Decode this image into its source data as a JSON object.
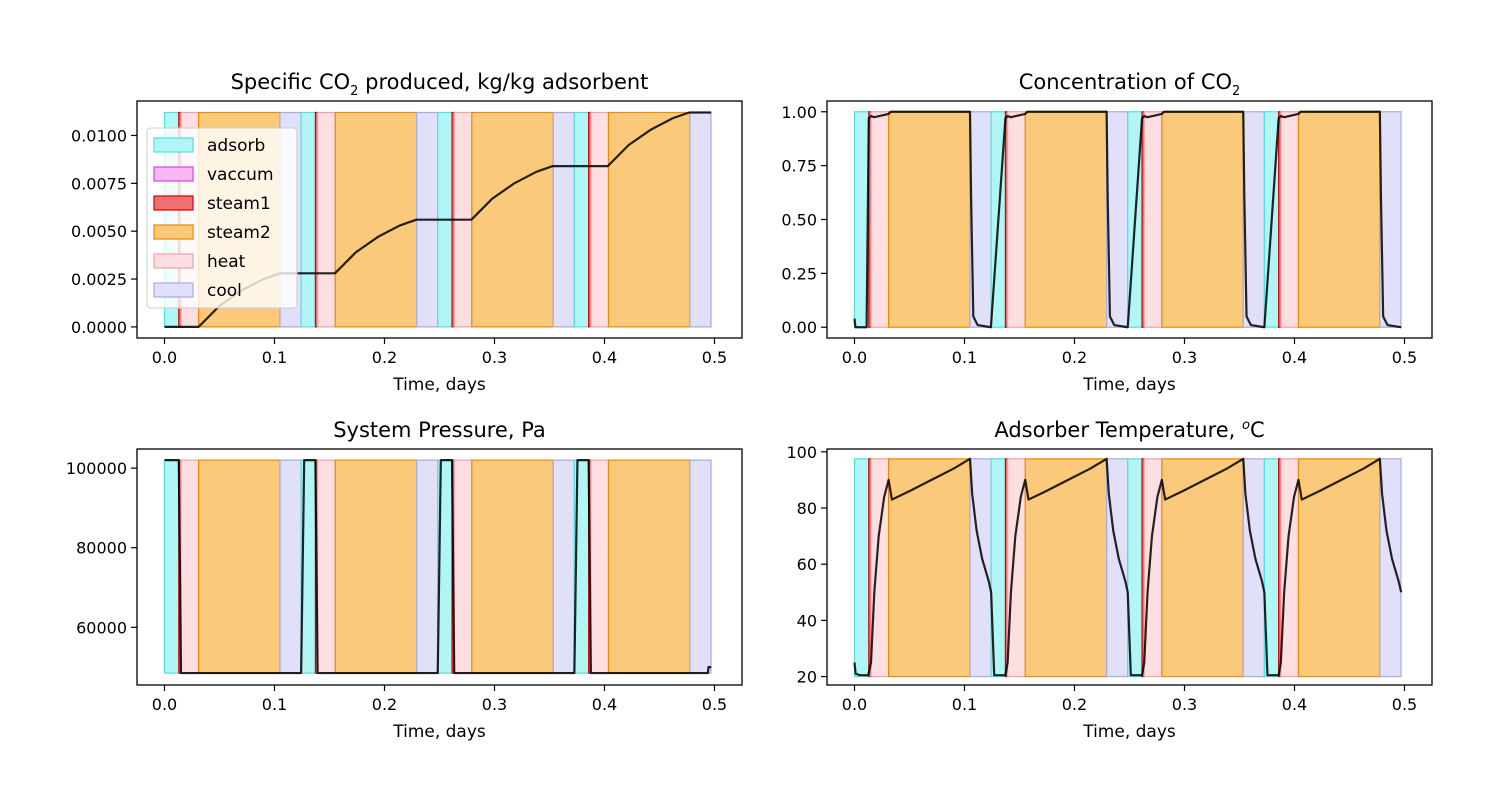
{
  "phase_colors": {
    "adsorb": {
      "fill": "#b2f5f5",
      "edge": "#4fe0e0"
    },
    "vaccum": {
      "fill": "#f5b8f2",
      "edge": "#e040e0"
    },
    "steam1": {
      "fill": "#ef7070",
      "edge": "#d80000"
    },
    "steam2": {
      "fill": "#fbc97a",
      "edge": "#f08800"
    },
    "heat": {
      "fill": "#fddfe2",
      "edge": "#f0a0a8"
    },
    "cool": {
      "fill": "#e0e0f9",
      "edge": "#a8a8ea"
    }
  },
  "cycle": {
    "start_times": [
      0.0,
      0.1242,
      0.2484,
      0.3726
    ],
    "phases": [
      {
        "name": "adsorb",
        "start": 0.0,
        "end": 0.013
      },
      {
        "name": "steam1",
        "start": 0.013,
        "end": 0.015
      },
      {
        "name": "heat",
        "start": 0.015,
        "end": 0.031
      },
      {
        "name": "steam2",
        "start": 0.031,
        "end": 0.105
      },
      {
        "name": "cool",
        "start": 0.105,
        "end": 0.1242
      }
    ]
  },
  "chart_data": [
    {
      "id": "co2-produced",
      "type": "area",
      "title": "Specific CO2 produced, kg/kg adsorbent",
      "title_parts": {
        "pre": "Specific CO",
        "sub": "2",
        "post": " produced, kg/kg adsorbent"
      },
      "xlabel": "Time, days",
      "xlim": [
        -0.025,
        0.525
      ],
      "ylim": [
        -0.00058,
        0.0118
      ],
      "xticks": [
        0.0,
        0.1,
        0.2,
        0.3,
        0.4,
        0.5
      ],
      "xtick_labels": [
        "0.0",
        "0.1",
        "0.2",
        "0.3",
        "0.4",
        "0.5"
      ],
      "yticks": [
        0.0,
        0.0025,
        0.005,
        0.0075,
        0.01
      ],
      "ytick_labels": [
        "0.0000",
        "0.0025",
        "0.0050",
        "0.0075",
        "0.0100"
      ],
      "band_range": [
        0.0,
        0.0112
      ],
      "legend": {
        "location": "upper-left",
        "entries": [
          "adsorb",
          "vaccum",
          "steam1",
          "steam2",
          "heat",
          "cool"
        ]
      },
      "series": [
        {
          "name": "CO2 produced",
          "color": "#000000",
          "x": [
            0.0,
            0.031,
            0.05,
            0.07,
            0.09,
            0.105,
            0.155,
            0.174,
            0.194,
            0.214,
            0.229,
            0.279,
            0.298,
            0.318,
            0.338,
            0.353,
            0.403,
            0.422,
            0.442,
            0.462,
            0.477,
            0.497
          ],
          "y": [
            0.0,
            0.0,
            0.0011,
            0.0019,
            0.0025,
            0.0028,
            0.0028,
            0.0039,
            0.0047,
            0.0053,
            0.0056,
            0.0056,
            0.0067,
            0.0075,
            0.0081,
            0.0084,
            0.0084,
            0.0095,
            0.0103,
            0.0109,
            0.0112,
            0.0112
          ]
        }
      ]
    },
    {
      "id": "co2-concentration",
      "type": "area",
      "title": "Concentration of CO2",
      "title_parts": {
        "pre": "Concentration of CO",
        "sub": "2",
        "post": ""
      },
      "xlabel": "Time, days",
      "xlim": [
        -0.025,
        0.525
      ],
      "ylim": [
        -0.05,
        1.05
      ],
      "xticks": [
        0.0,
        0.1,
        0.2,
        0.3,
        0.4,
        0.5
      ],
      "xtick_labels": [
        "0.0",
        "0.1",
        "0.2",
        "0.3",
        "0.4",
        "0.5"
      ],
      "yticks": [
        0.0,
        0.25,
        0.5,
        0.75,
        1.0
      ],
      "ytick_labels": [
        "0.00",
        "0.25",
        "0.50",
        "0.75",
        "1.00"
      ],
      "band_range": [
        0.0,
        1.0
      ],
      "series": [
        {
          "name": "CO2 concentration",
          "color": "#000000",
          "x": [
            0.0,
            0.0008,
            0.011,
            0.013,
            0.015,
            0.018,
            0.031,
            0.033,
            0.105,
            0.106,
            0.108,
            0.112,
            0.124,
            0.1372,
            0.1392,
            0.1422,
            0.1552,
            0.1572,
            0.2292,
            0.2302,
            0.2322,
            0.2362,
            0.2484,
            0.2614,
            0.2634,
            0.2664,
            0.2794,
            0.2814,
            0.3534,
            0.3544,
            0.3564,
            0.3604,
            0.3726,
            0.3856,
            0.3876,
            0.3906,
            0.4036,
            0.4056,
            0.4776,
            0.4786,
            0.4806,
            0.4846,
            0.497
          ],
          "y": [
            0.04,
            0.0,
            0.0,
            0.97,
            0.98,
            0.975,
            0.99,
            1.0,
            1.0,
            0.6,
            0.05,
            0.01,
            0.0,
            0.97,
            0.98,
            0.975,
            0.99,
            1.0,
            1.0,
            0.6,
            0.05,
            0.01,
            0.0,
            0.97,
            0.98,
            0.975,
            0.99,
            1.0,
            1.0,
            0.6,
            0.05,
            0.01,
            0.0,
            0.97,
            0.98,
            0.975,
            0.99,
            1.0,
            1.0,
            0.6,
            0.05,
            0.01,
            0.0
          ]
        }
      ]
    },
    {
      "id": "system-pressure",
      "type": "area",
      "title": "System Pressure, Pa",
      "title_parts": {
        "pre": "System Pressure, Pa",
        "sub": "",
        "post": ""
      },
      "xlabel": "Time, days",
      "xlim": [
        -0.025,
        0.525
      ],
      "ylim": [
        45500,
        104800
      ],
      "xticks": [
        0.0,
        0.1,
        0.2,
        0.3,
        0.4,
        0.5
      ],
      "xtick_labels": [
        "0.0",
        "0.1",
        "0.2",
        "0.3",
        "0.4",
        "0.5"
      ],
      "yticks": [
        60000,
        80000,
        100000
      ],
      "ytick_labels": [
        "60000",
        "80000",
        "100000"
      ],
      "band_range": [
        48500,
        102000
      ],
      "series": [
        {
          "name": "pressure",
          "color": "#000000",
          "x": [
            0.0,
            0.013,
            0.015,
            0.1242,
            0.127,
            0.1282,
            0.1372,
            0.1392,
            0.2484,
            0.2512,
            0.2524,
            0.2614,
            0.2634,
            0.3726,
            0.3754,
            0.3766,
            0.3856,
            0.3876,
            0.494,
            0.4945,
            0.497
          ],
          "y": [
            102000,
            102000,
            48500,
            48500,
            102000,
            102000,
            102000,
            48500,
            48500,
            102000,
            102000,
            102000,
            48500,
            48500,
            102000,
            102000,
            102000,
            48500,
            48500,
            50000,
            50000
          ]
        }
      ]
    },
    {
      "id": "adsorber-temperature",
      "type": "area",
      "title": "Adsorber Temperature, oC",
      "title_parts": {
        "pre": "Adsorber Temperature, ",
        "sup": "o",
        "post": "C"
      },
      "xlabel": "Time, days",
      "xlim": [
        -0.025,
        0.525
      ],
      "ylim": [
        17,
        101
      ],
      "xticks": [
        0.0,
        0.1,
        0.2,
        0.3,
        0.4,
        0.5
      ],
      "xtick_labels": [
        "0.0",
        "0.1",
        "0.2",
        "0.3",
        "0.4",
        "0.5"
      ],
      "yticks": [
        20,
        40,
        60,
        80,
        100
      ],
      "ytick_labels": [
        "20",
        "40",
        "60",
        "80",
        "100"
      ],
      "band_range": [
        20,
        97.5
      ],
      "series": [
        {
          "name": "temperature",
          "color": "#000000",
          "x": [
            0.0,
            0.001,
            0.005,
            0.0125,
            0.015,
            0.018,
            0.022,
            0.027,
            0.031,
            0.034,
            0.05,
            0.07,
            0.09,
            0.105,
            0.107,
            0.111,
            0.116,
            0.122,
            0.1242,
            0.127,
            0.1372,
            0.1392,
            0.1422,
            0.1462,
            0.1512,
            0.1552,
            0.1582,
            0.1742,
            0.1942,
            0.2142,
            0.2292,
            0.2312,
            0.2352,
            0.2402,
            0.2462,
            0.2484,
            0.2512,
            0.2614,
            0.2634,
            0.2664,
            0.2704,
            0.2754,
            0.2794,
            0.2824,
            0.2984,
            0.3184,
            0.3384,
            0.3534,
            0.3554,
            0.3594,
            0.3644,
            0.3704,
            0.3726,
            0.3754,
            0.3856,
            0.3876,
            0.3906,
            0.3946,
            0.3996,
            0.4036,
            0.4066,
            0.4226,
            0.4426,
            0.4626,
            0.4776,
            0.4796,
            0.4836,
            0.4886,
            0.4946,
            0.497
          ],
          "y": [
            25,
            21,
            20.5,
            20.5,
            25,
            50,
            70,
            84,
            90,
            83,
            86,
            90,
            94,
            97.5,
            85,
            72,
            62,
            54,
            50,
            20.5,
            20.5,
            25,
            50,
            70,
            84,
            90,
            83,
            86,
            90,
            94,
            97.5,
            85,
            72,
            62,
            54,
            50,
            20.5,
            20.5,
            25,
            50,
            70,
            84,
            90,
            83,
            86,
            90,
            94,
            97.5,
            85,
            72,
            62,
            54,
            50,
            20.5,
            20.5,
            25,
            50,
            70,
            84,
            90,
            83,
            86,
            90,
            94,
            97.5,
            85,
            72,
            62,
            54,
            50
          ]
        }
      ]
    }
  ]
}
